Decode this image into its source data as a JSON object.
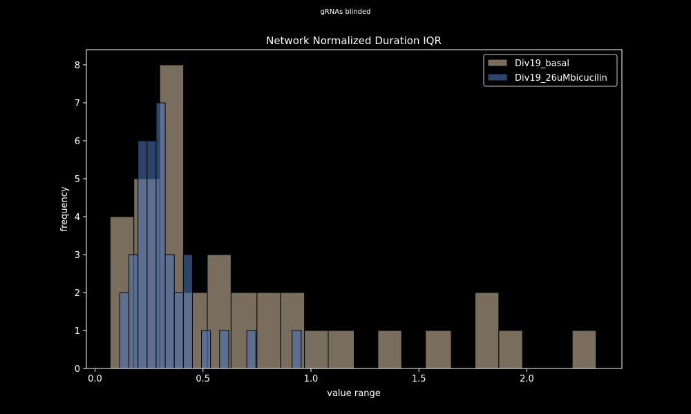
{
  "figure": {
    "suptitle": "gRNAs blinded"
  },
  "chart_data": {
    "type": "histogram",
    "title": "Network Normalized Duration IQR",
    "xlabel": "value range",
    "ylabel": "frequency",
    "xlim": [
      -0.04,
      2.44
    ],
    "ylim": [
      0,
      8.4
    ],
    "xticks": [
      0.0,
      0.5,
      1.0,
      1.5,
      2.0
    ],
    "xtick_labels": [
      "0.0",
      "0.5",
      "1.0",
      "1.5",
      "2.0"
    ],
    "yticks": [
      0,
      1,
      2,
      3,
      4,
      5,
      6,
      7,
      8
    ],
    "ytick_labels": [
      "0",
      "1",
      "2",
      "3",
      "4",
      "5",
      "6",
      "7",
      "8"
    ],
    "grid": false,
    "legend": {
      "position": "top-right"
    },
    "series": [
      {
        "name": "Div19_basal",
        "color": "#c9b79c",
        "edgecolor": "#000000",
        "alpha": 0.6,
        "bins": [
          {
            "x0": 0.07,
            "x1": 0.18,
            "count": 4
          },
          {
            "x0": 0.18,
            "x1": 0.3,
            "count": 5
          },
          {
            "x0": 0.3,
            "x1": 0.41,
            "count": 8
          },
          {
            "x0": 0.41,
            "x1": 0.52,
            "count": 2
          },
          {
            "x0": 0.52,
            "x1": 0.63,
            "count": 3
          },
          {
            "x0": 0.63,
            "x1": 0.75,
            "count": 2
          },
          {
            "x0": 0.75,
            "x1": 0.86,
            "count": 2
          },
          {
            "x0": 0.86,
            "x1": 0.97,
            "count": 2
          },
          {
            "x0": 0.97,
            "x1": 1.08,
            "count": 1
          },
          {
            "x0": 1.08,
            "x1": 1.2,
            "count": 1
          },
          {
            "x0": 1.31,
            "x1": 1.42,
            "count": 1
          },
          {
            "x0": 1.53,
            "x1": 1.65,
            "count": 1
          },
          {
            "x0": 1.76,
            "x1": 1.87,
            "count": 2
          },
          {
            "x0": 1.87,
            "x1": 1.98,
            "count": 1
          },
          {
            "x0": 2.21,
            "x1": 2.32,
            "count": 1
          }
        ]
      },
      {
        "name": "Div19_26uMbicucilin",
        "color": "#4a6fb0",
        "edgecolor": "#000000",
        "alpha": 0.6,
        "bins": [
          {
            "x0": 0.115,
            "x1": 0.157,
            "count": 2
          },
          {
            "x0": 0.157,
            "x1": 0.199,
            "count": 3
          },
          {
            "x0": 0.199,
            "x1": 0.241,
            "count": 6
          },
          {
            "x0": 0.241,
            "x1": 0.283,
            "count": 6
          },
          {
            "x0": 0.283,
            "x1": 0.325,
            "count": 7
          },
          {
            "x0": 0.325,
            "x1": 0.367,
            "count": 3
          },
          {
            "x0": 0.367,
            "x1": 0.409,
            "count": 2
          },
          {
            "x0": 0.409,
            "x1": 0.451,
            "count": 3
          },
          {
            "x0": 0.493,
            "x1": 0.535,
            "count": 1
          },
          {
            "x0": 0.577,
            "x1": 0.619,
            "count": 1
          },
          {
            "x0": 0.703,
            "x1": 0.745,
            "count": 1
          },
          {
            "x0": 0.913,
            "x1": 0.955,
            "count": 1
          }
        ]
      }
    ]
  }
}
